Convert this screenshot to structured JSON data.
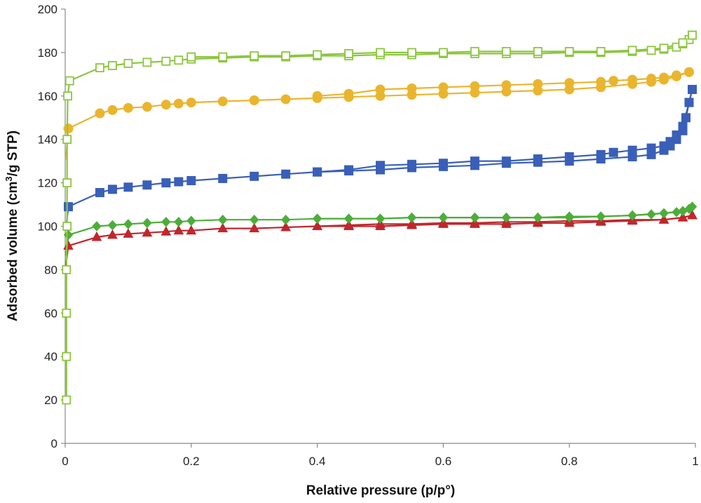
{
  "chart_data": {
    "type": "scatter",
    "xlabel": "Relative pressure (p/p°)",
    "ylabel_parts": {
      "before": "Adsorbed volume (cm",
      "sup": "3",
      "after": "/g STP)"
    },
    "xlim": [
      0,
      1
    ],
    "ylim": [
      0,
      200
    ],
    "x_ticks": [
      0,
      0.2,
      0.4,
      0.6,
      0.8,
      1
    ],
    "x_tick_labels": [
      "0",
      "0.2",
      "0.4",
      "0.6",
      "0.8",
      "1"
    ],
    "y_ticks": [
      0,
      20,
      40,
      60,
      80,
      100,
      120,
      140,
      160,
      180,
      200
    ],
    "y_tick_labels": [
      "0",
      "20",
      "40",
      "60",
      "80",
      "100",
      "120",
      "140",
      "160",
      "180",
      "200"
    ],
    "grid": false,
    "legend": "none",
    "series": [
      {
        "color": "#c0272d",
        "marker": "triangle",
        "filled": true,
        "adsorption": [
          [
            0.005,
            91
          ],
          [
            0.05,
            95
          ],
          [
            0.075,
            96
          ],
          [
            0.1,
            96.5
          ],
          [
            0.13,
            97
          ],
          [
            0.16,
            97.5
          ],
          [
            0.18,
            98
          ],
          [
            0.2,
            98
          ],
          [
            0.25,
            99
          ],
          [
            0.3,
            99
          ],
          [
            0.35,
            99.5
          ],
          [
            0.4,
            100
          ],
          [
            0.45,
            100
          ],
          [
            0.5,
            100
          ],
          [
            0.55,
            100.5
          ],
          [
            0.6,
            101
          ],
          [
            0.65,
            101
          ],
          [
            0.7,
            101
          ],
          [
            0.75,
            101.5
          ],
          [
            0.8,
            101.5
          ],
          [
            0.85,
            102
          ],
          [
            0.9,
            102.5
          ],
          [
            0.95,
            103
          ],
          [
            0.98,
            104
          ],
          [
            0.995,
            105
          ]
        ],
        "desorption": [
          [
            0.995,
            105
          ],
          [
            0.98,
            104
          ],
          [
            0.95,
            103
          ],
          [
            0.9,
            103
          ],
          [
            0.85,
            102.5
          ],
          [
            0.8,
            102.5
          ],
          [
            0.75,
            102
          ],
          [
            0.7,
            102
          ],
          [
            0.65,
            101.5
          ],
          [
            0.6,
            101.5
          ],
          [
            0.55,
            101
          ],
          [
            0.5,
            101
          ],
          [
            0.45,
            100.5
          ],
          [
            0.4,
            100
          ]
        ]
      },
      {
        "color": "#4cae3a",
        "marker": "diamond",
        "filled": true,
        "adsorption": [
          [
            0.005,
            96
          ],
          [
            0.05,
            100
          ],
          [
            0.075,
            100.5
          ],
          [
            0.1,
            101
          ],
          [
            0.13,
            101.5
          ],
          [
            0.16,
            102
          ],
          [
            0.18,
            102
          ],
          [
            0.2,
            102.5
          ],
          [
            0.25,
            103
          ],
          [
            0.3,
            103
          ],
          [
            0.35,
            103
          ],
          [
            0.4,
            103.5
          ],
          [
            0.45,
            103.5
          ],
          [
            0.5,
            103.5
          ],
          [
            0.55,
            104
          ],
          [
            0.6,
            104
          ],
          [
            0.65,
            104
          ],
          [
            0.7,
            104
          ],
          [
            0.75,
            104
          ],
          [
            0.8,
            104
          ],
          [
            0.85,
            104.5
          ],
          [
            0.9,
            105
          ],
          [
            0.93,
            105.5
          ],
          [
            0.95,
            106
          ],
          [
            0.97,
            106.5
          ],
          [
            0.98,
            107
          ],
          [
            0.99,
            108
          ],
          [
            0.995,
            109
          ]
        ],
        "desorption": [
          [
            0.995,
            109
          ],
          [
            0.98,
            107
          ],
          [
            0.95,
            106
          ],
          [
            0.9,
            105
          ],
          [
            0.85,
            104.5
          ],
          [
            0.8,
            104.5
          ],
          [
            0.75,
            104
          ],
          [
            0.7,
            104
          ],
          [
            0.65,
            104
          ],
          [
            0.6,
            104
          ],
          [
            0.55,
            104
          ],
          [
            0.5,
            103.5
          ],
          [
            0.45,
            103.5
          ],
          [
            0.4,
            103.5
          ]
        ]
      },
      {
        "color": "#3a5fb8",
        "marker": "square",
        "filled": true,
        "adsorption": [
          [
            0.005,
            109
          ],
          [
            0.055,
            115.5
          ],
          [
            0.075,
            117
          ],
          [
            0.1,
            118
          ],
          [
            0.13,
            119
          ],
          [
            0.16,
            120
          ],
          [
            0.18,
            120.5
          ],
          [
            0.2,
            121
          ],
          [
            0.25,
            122
          ],
          [
            0.3,
            123
          ],
          [
            0.35,
            124
          ],
          [
            0.4,
            125
          ],
          [
            0.45,
            125.5
          ],
          [
            0.5,
            126
          ],
          [
            0.55,
            127
          ],
          [
            0.6,
            127.5
          ],
          [
            0.65,
            128
          ],
          [
            0.7,
            129
          ],
          [
            0.75,
            129.5
          ],
          [
            0.8,
            130
          ],
          [
            0.85,
            131
          ],
          [
            0.9,
            132
          ],
          [
            0.93,
            133
          ],
          [
            0.95,
            135
          ],
          [
            0.96,
            137
          ],
          [
            0.97,
            140
          ],
          [
            0.98,
            144
          ],
          [
            0.985,
            150
          ],
          [
            0.99,
            157
          ],
          [
            0.995,
            163
          ]
        ],
        "desorption": [
          [
            0.995,
            163
          ],
          [
            0.99,
            157
          ],
          [
            0.98,
            146
          ],
          [
            0.97,
            142
          ],
          [
            0.96,
            139
          ],
          [
            0.95,
            137
          ],
          [
            0.93,
            136
          ],
          [
            0.9,
            135
          ],
          [
            0.87,
            134
          ],
          [
            0.85,
            133
          ],
          [
            0.8,
            132
          ],
          [
            0.75,
            131
          ],
          [
            0.7,
            130
          ],
          [
            0.65,
            130
          ],
          [
            0.6,
            129
          ],
          [
            0.55,
            128.5
          ],
          [
            0.5,
            128
          ],
          [
            0.45,
            126
          ],
          [
            0.4,
            125
          ]
        ]
      },
      {
        "color": "#eab52e",
        "marker": "circle",
        "filled": true,
        "adsorption": [
          [
            0.005,
            145
          ],
          [
            0.055,
            152
          ],
          [
            0.075,
            153.5
          ],
          [
            0.1,
            154.5
          ],
          [
            0.13,
            155
          ],
          [
            0.16,
            156
          ],
          [
            0.18,
            156.5
          ],
          [
            0.2,
            157
          ],
          [
            0.25,
            157.5
          ],
          [
            0.3,
            158
          ],
          [
            0.35,
            158.5
          ],
          [
            0.4,
            159
          ],
          [
            0.45,
            159.5
          ],
          [
            0.5,
            160
          ],
          [
            0.55,
            160.5
          ],
          [
            0.6,
            161
          ],
          [
            0.65,
            161.5
          ],
          [
            0.7,
            162
          ],
          [
            0.75,
            162.5
          ],
          [
            0.8,
            163
          ],
          [
            0.85,
            164
          ],
          [
            0.9,
            165.5
          ],
          [
            0.93,
            166.5
          ],
          [
            0.95,
            167.5
          ],
          [
            0.97,
            169
          ],
          [
            0.99,
            171
          ]
        ],
        "desorption": [
          [
            0.99,
            171
          ],
          [
            0.97,
            169.5
          ],
          [
            0.95,
            168.5
          ],
          [
            0.93,
            168
          ],
          [
            0.9,
            167.5
          ],
          [
            0.87,
            167
          ],
          [
            0.85,
            166.5
          ],
          [
            0.8,
            166
          ],
          [
            0.75,
            165.5
          ],
          [
            0.7,
            165
          ],
          [
            0.65,
            164.5
          ],
          [
            0.6,
            164
          ],
          [
            0.55,
            163.5
          ],
          [
            0.5,
            163
          ],
          [
            0.45,
            161
          ],
          [
            0.4,
            160
          ]
        ]
      },
      {
        "color": "#8cc63f",
        "marker": "square",
        "filled": false,
        "adsorption": [
          [
            0.002,
            20
          ],
          [
            0.002,
            40
          ],
          [
            0.002,
            60
          ],
          [
            0.002,
            80
          ],
          [
            0.003,
            100
          ],
          [
            0.003,
            120
          ],
          [
            0.003,
            140
          ],
          [
            0.004,
            160
          ],
          [
            0.007,
            167
          ],
          [
            0.055,
            173
          ],
          [
            0.075,
            174
          ],
          [
            0.1,
            175
          ],
          [
            0.13,
            175.5
          ],
          [
            0.16,
            176
          ],
          [
            0.18,
            176.5
          ],
          [
            0.2,
            177
          ],
          [
            0.25,
            177.5
          ],
          [
            0.3,
            178
          ],
          [
            0.35,
            178
          ],
          [
            0.4,
            178.5
          ],
          [
            0.45,
            178.5
          ],
          [
            0.5,
            179
          ],
          [
            0.55,
            179
          ],
          [
            0.6,
            179.5
          ],
          [
            0.65,
            179.5
          ],
          [
            0.7,
            179.5
          ],
          [
            0.75,
            179.5
          ],
          [
            0.8,
            180
          ],
          [
            0.85,
            180
          ],
          [
            0.9,
            180.5
          ],
          [
            0.93,
            181
          ],
          [
            0.95,
            181.5
          ],
          [
            0.97,
            182.5
          ],
          [
            0.98,
            184
          ],
          [
            0.99,
            186
          ],
          [
            0.995,
            188
          ]
        ],
        "desorption": [
          [
            0.995,
            188
          ],
          [
            0.98,
            184.5
          ],
          [
            0.95,
            182
          ],
          [
            0.9,
            181
          ],
          [
            0.85,
            180.5
          ],
          [
            0.8,
            180.5
          ],
          [
            0.75,
            180.5
          ],
          [
            0.7,
            180.5
          ],
          [
            0.65,
            180.5
          ],
          [
            0.6,
            180
          ],
          [
            0.55,
            180
          ],
          [
            0.5,
            180
          ],
          [
            0.45,
            179.5
          ],
          [
            0.4,
            179
          ],
          [
            0.35,
            178.5
          ],
          [
            0.3,
            178.5
          ],
          [
            0.25,
            178
          ],
          [
            0.2,
            178
          ]
        ]
      }
    ]
  }
}
